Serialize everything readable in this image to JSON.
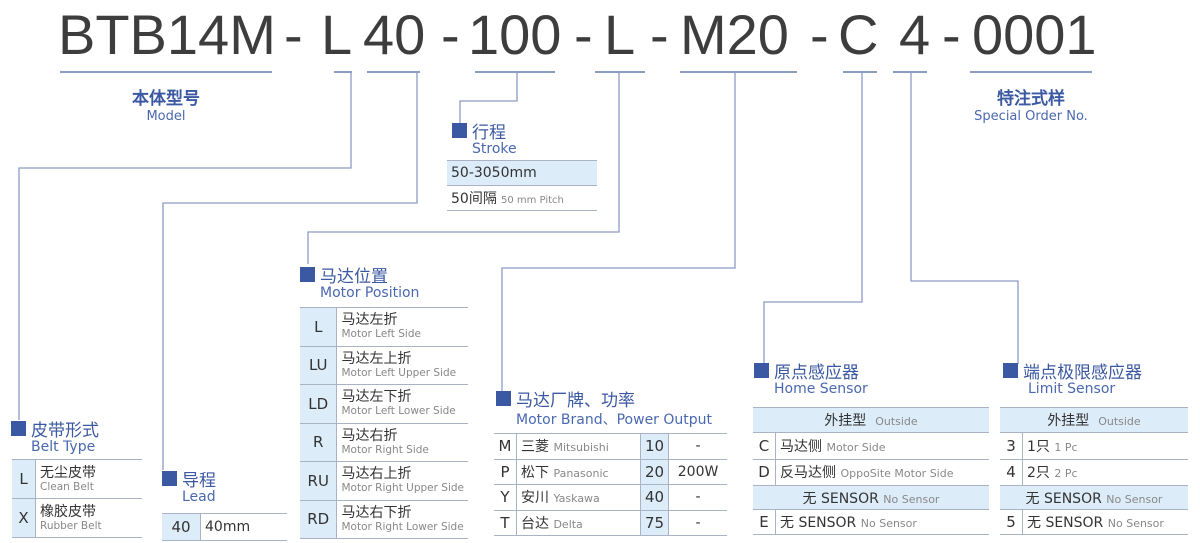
{
  "model_code": {
    "parts": [
      "BTB14M",
      "-",
      "L",
      "40",
      "-",
      "100",
      "-",
      "L",
      "-",
      "M20",
      "-",
      "C",
      "4",
      "-",
      "0001"
    ]
  },
  "colors": {
    "accent": "#3b58a2",
    "cell_bg": "#dcecf8",
    "line": "#8c9cc4",
    "code_text": "#3d3d3d"
  },
  "model_label": {
    "cn": "本体型号",
    "en": "Model"
  },
  "special_label": {
    "cn": "特注式样",
    "en": "Special Order No."
  },
  "stroke": {
    "cn": "行程",
    "en": "Stroke",
    "range": "50-3050mm",
    "pitch_cn": "50间隔",
    "pitch_en": "50 mm Pitch"
  },
  "motor_position": {
    "cn": "马达位置",
    "en": "Motor Position",
    "rows": [
      {
        "code": "L",
        "cn": "马达左折",
        "en": "Motor Left Side"
      },
      {
        "code": "LU",
        "cn": "马达左上折",
        "en": "Motor Left Upper Side"
      },
      {
        "code": "LD",
        "cn": "马达左下折",
        "en": "Motor Left Lower Side"
      },
      {
        "code": "R",
        "cn": "马达右折",
        "en": "Motor Right Side"
      },
      {
        "code": "RU",
        "cn": "马达右上折",
        "en": "Motor Right Upper Side"
      },
      {
        "code": "RD",
        "cn": "马达右下折",
        "en": "Motor Right Lower Side"
      }
    ]
  },
  "belt_type": {
    "cn": "皮带形式",
    "en": "Belt Type",
    "rows": [
      {
        "code": "L",
        "cn": "无尘皮带",
        "en": "Clean Belt"
      },
      {
        "code": "X",
        "cn": "橡胶皮带",
        "en": "Rubber Belt"
      }
    ]
  },
  "lead": {
    "cn": "导程",
    "en": "Lead",
    "rows": [
      {
        "code": "40",
        "value": "40mm"
      }
    ]
  },
  "motor_brand": {
    "cn": "马达厂牌、功率",
    "en": "Motor Brand、Power Output",
    "rows": [
      {
        "code": "M",
        "cn": "三菱",
        "en": "Mitsubishi",
        "num": "10",
        "power": "-"
      },
      {
        "code": "P",
        "cn": "松下",
        "en": "Panasonic",
        "num": "20",
        "power": "200W"
      },
      {
        "code": "Y",
        "cn": "安川",
        "en": "Yaskawa",
        "num": "40",
        "power": "-"
      },
      {
        "code": "T",
        "cn": "台达",
        "en": "Delta",
        "num": "75",
        "power": "-"
      }
    ]
  },
  "home_sensor": {
    "cn": "原点感应器",
    "en": "Home Sensor",
    "outside_cn": "外挂型",
    "outside_en": "Outside",
    "rows": [
      {
        "code": "C",
        "cn": "马达侧",
        "en": "Motor Side"
      },
      {
        "code": "D",
        "cn": "反马达侧",
        "en": "OppoSite Motor Side"
      }
    ],
    "none_cn": "无 SENSOR",
    "none_en": "No Sensor",
    "none_row": {
      "code": "E",
      "cn": "无 SENSOR",
      "en": "No Sensor"
    }
  },
  "limit_sensor": {
    "cn": "端点极限感应器",
    "en": "Limit Sensor",
    "outside_cn": "外挂型",
    "outside_en": "Outside",
    "rows": [
      {
        "code": "3",
        "cn": "1只",
        "en": "1 Pc"
      },
      {
        "code": "4",
        "cn": "2只",
        "en": "2 Pc"
      }
    ],
    "none_cn": "无 SENSOR",
    "none_en": "No Sensor",
    "none_row": {
      "code": "5",
      "cn": "无 SENSOR",
      "en": "No Sensor"
    }
  }
}
